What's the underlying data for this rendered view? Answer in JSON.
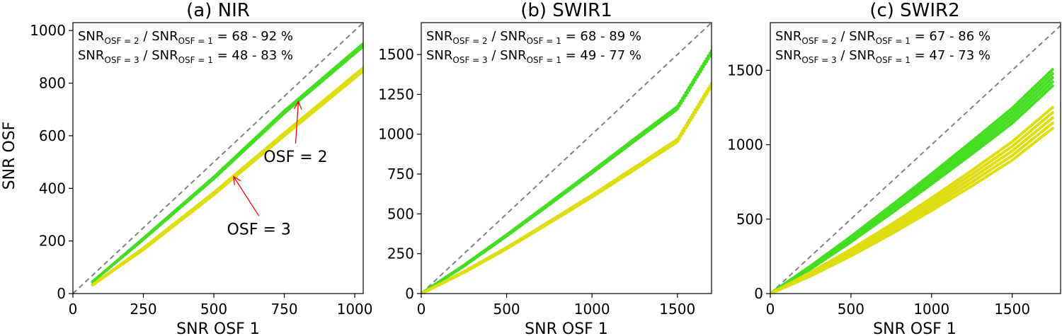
{
  "figure": {
    "ylabel": "SNR OSF",
    "colors": {
      "osf2": "#44dd22",
      "osf3": "#dddd11",
      "identity": "#808080",
      "arrow": "#ff0000"
    }
  },
  "chart_data": [
    {
      "type": "scatter",
      "title": "(a) NIR",
      "xlabel": "SNR OSF 1",
      "ylabel": "SNR OSF",
      "xlim": [
        0,
        1030
      ],
      "ylim": [
        0,
        1030
      ],
      "xticks": [
        0,
        250,
        500,
        750,
        1000
      ],
      "yticks": [
        0,
        200,
        400,
        600,
        800,
        1000
      ],
      "grid": false,
      "legend": "none",
      "ratio_texts": [
        {
          "main": "SNR",
          "sub": "OSF = 2",
          "mid": " / SNR",
          "sub2": "OSF = 1",
          "tail": " = 68 - 92 %"
        },
        {
          "main": "SNR",
          "sub": "OSF = 3",
          "mid": " / SNR",
          "sub2": "OSF = 1",
          "tail": " = 48 - 83 %"
        }
      ],
      "annotations": [
        {
          "text": "OSF = 2",
          "xy": [
            800,
            730
          ],
          "xytext": [
            790,
            500
          ]
        },
        {
          "text": "OSF = 3",
          "xy": [
            570,
            445
          ],
          "xytext": [
            660,
            225
          ]
        }
      ],
      "series": [
        {
          "name": "OSF = 2",
          "color_key": "osf2",
          "x": [
            70,
            250,
            500,
            750,
            1030
          ],
          "y": [
            45,
            208,
            440,
            690,
            945
          ],
          "spread": [
            0,
            2,
            3,
            4,
            5
          ]
        },
        {
          "name": "OSF = 3",
          "color_key": "osf3",
          "x": [
            70,
            250,
            500,
            750,
            1030
          ],
          "y": [
            33,
            170,
            380,
            605,
            852
          ],
          "spread": [
            0,
            3,
            4,
            5,
            6
          ]
        }
      ]
    },
    {
      "type": "scatter",
      "title": "(b) SWIR1",
      "xlabel": "SNR OSF 1",
      "ylabel": "",
      "xlim": [
        0,
        1700
      ],
      "ylim": [
        0,
        1700
      ],
      "xticks": [
        0,
        500,
        1000,
        1500
      ],
      "yticks": [
        0,
        250,
        500,
        750,
        1000,
        1250,
        1500
      ],
      "grid": false,
      "legend": "none",
      "ratio_texts": [
        {
          "main": "SNR",
          "sub": "OSF = 2",
          "mid": " / SNR",
          "sub2": "OSF = 1",
          "tail": " = 68 - 89 %"
        },
        {
          "main": "SNR",
          "sub": "OSF = 3",
          "mid": " / SNR",
          "sub2": "OSF = 1",
          "tail": " = 49 - 77 %"
        }
      ],
      "annotations": [],
      "series": [
        {
          "name": "OSF = 2",
          "color_key": "osf2",
          "x": [
            5,
            250,
            500,
            750,
            1000,
            1250,
            1500,
            1700
          ],
          "y": [
            3,
            175,
            365,
            563,
            762,
            965,
            1165,
            1515
          ],
          "spread": [
            0,
            3,
            4,
            5,
            6,
            7,
            8,
            9
          ]
        },
        {
          "name": "OSF = 3",
          "color_key": "osf3",
          "x": [
            5,
            250,
            500,
            750,
            1000,
            1250,
            1500,
            1700
          ],
          "y": [
            2,
            135,
            285,
            447,
            612,
            785,
            960,
            1310
          ],
          "spread": [
            0,
            3,
            4,
            5,
            6,
            7,
            8,
            9
          ]
        }
      ]
    },
    {
      "type": "scatter",
      "title": "(c) SWIR2",
      "xlabel": "SNR OSF 1",
      "ylabel": "",
      "xlim": [
        0,
        1800
      ],
      "ylim": [
        0,
        1820
      ],
      "xticks": [
        0,
        500,
        1000,
        1500
      ],
      "yticks": [
        0,
        500,
        1000,
        1500
      ],
      "grid": false,
      "legend": "none",
      "ratio_texts": [
        {
          "main": "SNR",
          "sub": "OSF = 2",
          "mid": " / SNR",
          "sub2": "OSF = 1",
          "tail": " = 67 - 86 %"
        },
        {
          "main": "SNR",
          "sub": "OSF = 3",
          "mid": " / SNR",
          "sub2": "OSF = 1",
          "tail": " = 47 - 73 %"
        }
      ],
      "annotations": [],
      "series": [
        {
          "name": "OSF = 2",
          "color_key": "osf2",
          "x": [
            5,
            250,
            500,
            750,
            1000,
            1250,
            1500,
            1750
          ],
          "y": [
            3,
            175,
            365,
            565,
            770,
            980,
            1195,
            1450
          ],
          "spread": [
            0,
            10,
            18,
            26,
            34,
            42,
            50,
            55
          ]
        },
        {
          "name": "OSF = 3",
          "color_key": "osf3",
          "x": [
            5,
            250,
            500,
            750,
            1000,
            1250,
            1500,
            1750
          ],
          "y": [
            2,
            130,
            275,
            432,
            600,
            775,
            958,
            1180
          ],
          "spread": [
            0,
            12,
            22,
            32,
            42,
            52,
            62,
            70
          ]
        }
      ]
    }
  ]
}
